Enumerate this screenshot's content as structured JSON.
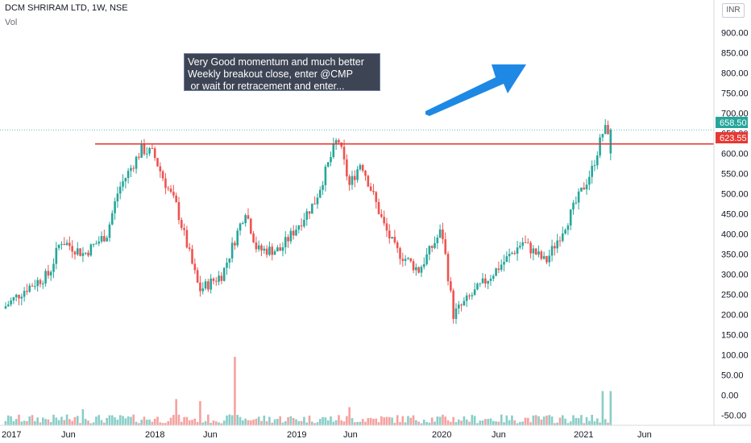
{
  "header": {
    "title": "DCM SHRIRAM LTD, 1W, NSE",
    "volume_label": "Vol"
  },
  "currency": "INR",
  "note": "Very Good momentum and much better\nWeekly breakout close, enter @CMP\n or wait for retracement and enter...",
  "price_axis": {
    "labels": [
      "900.00",
      "850.00",
      "800.00",
      "750.00",
      "700.00",
      "650.00",
      "600.00",
      "550.00",
      "500.00",
      "450.00",
      "400.00",
      "350.00",
      "300.00",
      "250.00",
      "200.00",
      "150.00",
      "100.00",
      "50.00",
      "0.00",
      "-50.00"
    ],
    "current_price": "658.50",
    "line_price": "623.55"
  },
  "time_axis": {
    "labels": [
      "2017",
      "Jun",
      "2018",
      "Jun",
      "2019",
      "Jun",
      "2020",
      "Jun",
      "2021",
      "Jun"
    ]
  },
  "colors": {
    "up": "#26a69a",
    "down": "#ef5350",
    "resistance": "#e53935",
    "arrow": "#1e88e5",
    "current_badge": "#26a69a",
    "line_badge": "#e53935"
  },
  "chart_data": {
    "type": "candlestick",
    "title": "DCM SHRIRAM LTD, 1W, NSE",
    "ylim": [
      -75,
      925
    ],
    "horizontal_line": 623.55,
    "last_price": 658.5,
    "price_path": [
      {
        "date": "2016-12",
        "close": 215
      },
      {
        "date": "2017-02",
        "close": 265
      },
      {
        "date": "2017-04",
        "close": 300
      },
      {
        "date": "2017-05",
        "close": 385
      },
      {
        "date": "2017-07",
        "close": 350
      },
      {
        "date": "2017-09",
        "close": 400
      },
      {
        "date": "2017-10",
        "close": 510
      },
      {
        "date": "2017-12",
        "close": 610
      },
      {
        "date": "2018-01",
        "close": 600
      },
      {
        "date": "2018-02",
        "close": 530
      },
      {
        "date": "2018-03",
        "close": 470
      },
      {
        "date": "2018-05",
        "close": 260
      },
      {
        "date": "2018-07",
        "close": 300
      },
      {
        "date": "2018-09",
        "close": 460
      },
      {
        "date": "2018-10",
        "close": 360
      },
      {
        "date": "2018-12",
        "close": 360
      },
      {
        "date": "2019-03",
        "close": 480
      },
      {
        "date": "2019-05",
        "close": 640
      },
      {
        "date": "2019-06",
        "close": 520
      },
      {
        "date": "2019-07",
        "close": 580
      },
      {
        "date": "2019-09",
        "close": 420
      },
      {
        "date": "2019-10",
        "close": 360
      },
      {
        "date": "2019-12",
        "close": 310
      },
      {
        "date": "2020-02",
        "close": 410
      },
      {
        "date": "2020-03",
        "close": 200
      },
      {
        "date": "2020-05",
        "close": 260
      },
      {
        "date": "2020-07",
        "close": 320
      },
      {
        "date": "2020-09",
        "close": 380
      },
      {
        "date": "2020-11",
        "close": 330
      },
      {
        "date": "2021-01",
        "close": 440
      },
      {
        "date": "2021-02",
        "close": 500
      },
      {
        "date": "2021-03",
        "close": 560
      },
      {
        "date": "2021-04",
        "close": 658.5
      }
    ],
    "volume_spikes": [
      {
        "date": "2017-07",
        "value": 40
      },
      {
        "date": "2018-03",
        "value": 65
      },
      {
        "date": "2018-05",
        "value": 60
      },
      {
        "date": "2018-08",
        "value": 170
      },
      {
        "date": "2019-06",
        "value": 45
      },
      {
        "date": "2021-04",
        "value": 85
      }
    ]
  }
}
